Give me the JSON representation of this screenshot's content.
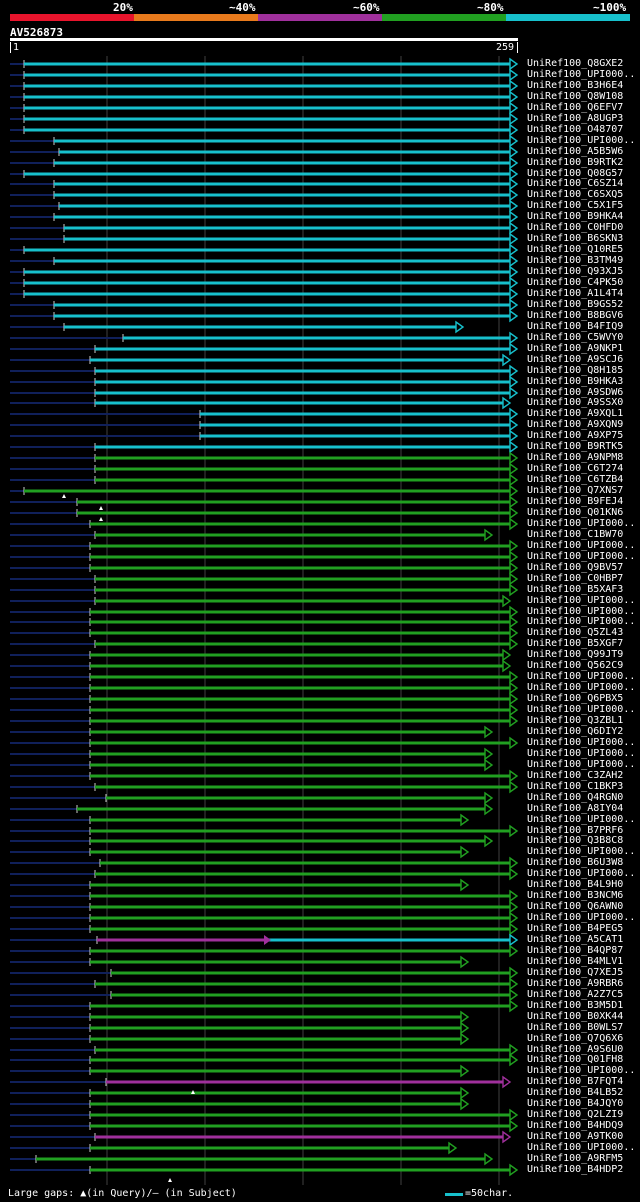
{
  "query": {
    "name": "AV526873",
    "start": "1",
    "end": "259"
  },
  "legend": [
    {
      "label": "20%",
      "color": "#e8142c"
    },
    {
      "label": "~40%",
      "color": "#e87a1c"
    },
    {
      "label": "~60%",
      "color": "#a0309c"
    },
    {
      "label": "~80%",
      "color": "#21a021"
    },
    {
      "label": "~100%",
      "color": "#17c0cc"
    }
  ],
  "hits": [
    {
      "id": "UniRef100_Q8GXE2",
      "color": "cyan"
    },
    {
      "id": "UniRef100_UPI000..",
      "color": "cyan"
    },
    {
      "id": "UniRef100_B3H6E4",
      "color": "cyan"
    },
    {
      "id": "UniRef100_Q8W108",
      "color": "cyan"
    },
    {
      "id": "UniRef100_Q6EFV7",
      "color": "cyan"
    },
    {
      "id": "UniRef100_A8UGP3",
      "color": "cyan"
    },
    {
      "id": "UniRef100_O48707",
      "color": "cyan"
    },
    {
      "id": "UniRef100_UPI000..",
      "color": "cyan"
    },
    {
      "id": "UniRef100_A5B5W6",
      "color": "cyan"
    },
    {
      "id": "UniRef100_B9RTK2",
      "color": "cyan"
    },
    {
      "id": "UniRef100_Q08G57",
      "color": "cyan"
    },
    {
      "id": "UniRef100_C6SZ14",
      "color": "cyan"
    },
    {
      "id": "UniRef100_C6SXQ5",
      "color": "cyan"
    },
    {
      "id": "UniRef100_C5X1F5",
      "color": "cyan"
    },
    {
      "id": "UniRef100_B9HKA4",
      "color": "cyan"
    },
    {
      "id": "UniRef100_C0HFD0",
      "color": "cyan"
    },
    {
      "id": "UniRef100_B6SKN3",
      "color": "cyan"
    },
    {
      "id": "UniRef100_Q10RE5",
      "color": "cyan"
    },
    {
      "id": "UniRef100_B3TM49",
      "color": "cyan"
    },
    {
      "id": "UniRef100_Q93XJ5",
      "color": "cyan"
    },
    {
      "id": "UniRef100_C4PK50",
      "color": "cyan"
    },
    {
      "id": "UniRef100_A1L4T4",
      "color": "cyan"
    },
    {
      "id": "UniRef100_B9GS52",
      "color": "cyan"
    },
    {
      "id": "UniRef100_B8BGV6",
      "color": "cyan"
    },
    {
      "id": "UniRef100_B4FIQ9",
      "color": "cyan"
    },
    {
      "id": "UniRef100_C5WVY0",
      "color": "cyan"
    },
    {
      "id": "UniRef100_A9NKP1",
      "color": "cyan"
    },
    {
      "id": "UniRef100_A9SCJ6",
      "color": "cyan"
    },
    {
      "id": "UniRef100_Q8H185",
      "color": "cyan"
    },
    {
      "id": "UniRef100_B9HKA3",
      "color": "cyan"
    },
    {
      "id": "UniRef100_A9SDW6",
      "color": "cyan"
    },
    {
      "id": "UniRef100_A9SSX0",
      "color": "cyan"
    },
    {
      "id": "UniRef100_A9XQL1",
      "color": "cyan"
    },
    {
      "id": "UniRef100_A9XQN9",
      "color": "cyan"
    },
    {
      "id": "UniRef100_A9XP75",
      "color": "cyan"
    },
    {
      "id": "UniRef100_B9RTK5",
      "color": "cyan"
    },
    {
      "id": "UniRef100_A9NPM8",
      "color": "green"
    },
    {
      "id": "UniRef100_C6T274",
      "color": "green"
    },
    {
      "id": "UniRef100_C6TZB4",
      "color": "green"
    },
    {
      "id": "UniRef100_Q7XNS7",
      "color": "green"
    },
    {
      "id": "UniRef100_B9FEJ4",
      "color": "green"
    },
    {
      "id": "UniRef100_Q01KN6",
      "color": "green"
    },
    {
      "id": "UniRef100_UPI000..",
      "color": "green"
    },
    {
      "id": "UniRef100_C1BW70",
      "color": "green"
    },
    {
      "id": "UniRef100_UPI000..",
      "color": "green"
    },
    {
      "id": "UniRef100_UPI000..",
      "color": "green"
    },
    {
      "id": "UniRef100_Q9BV57",
      "color": "green"
    },
    {
      "id": "UniRef100_C0HBP7",
      "color": "green"
    },
    {
      "id": "UniRef100_B5XAF3",
      "color": "green"
    },
    {
      "id": "UniRef100_UPI000..",
      "color": "green"
    },
    {
      "id": "UniRef100_UPI000..",
      "color": "green"
    },
    {
      "id": "UniRef100_UPI000..",
      "color": "green"
    },
    {
      "id": "UniRef100_Q5ZL43",
      "color": "green"
    },
    {
      "id": "UniRef100_B5XGF7",
      "color": "green"
    },
    {
      "id": "UniRef100_Q99JT9",
      "color": "green"
    },
    {
      "id": "UniRef100_Q562C9",
      "color": "green"
    },
    {
      "id": "UniRef100_UPI000..",
      "color": "green"
    },
    {
      "id": "UniRef100_UPI000..",
      "color": "green"
    },
    {
      "id": "UniRef100_Q6PBX5",
      "color": "green"
    },
    {
      "id": "UniRef100_UPI000..",
      "color": "green"
    },
    {
      "id": "UniRef100_Q3ZBL1",
      "color": "green"
    },
    {
      "id": "UniRef100_Q6DIY2",
      "color": "green"
    },
    {
      "id": "UniRef100_UPI000..",
      "color": "green"
    },
    {
      "id": "UniRef100_UPI000..",
      "color": "green"
    },
    {
      "id": "UniRef100_UPI000..",
      "color": "green"
    },
    {
      "id": "UniRef100_C3ZAH2",
      "color": "green"
    },
    {
      "id": "UniRef100_C1BKP3",
      "color": "green"
    },
    {
      "id": "UniRef100_Q4RGN0",
      "color": "green"
    },
    {
      "id": "UniRef100_A8IY04",
      "color": "green"
    },
    {
      "id": "UniRef100_UPI000..",
      "color": "green"
    },
    {
      "id": "UniRef100_B7PRF6",
      "color": "green"
    },
    {
      "id": "UniRef100_Q3B8C8",
      "color": "green"
    },
    {
      "id": "UniRef100_UPI000..",
      "color": "green"
    },
    {
      "id": "UniRef100_B6U3W8",
      "color": "green"
    },
    {
      "id": "UniRef100_UPI000..",
      "color": "green"
    },
    {
      "id": "UniRef100_B4L9H0",
      "color": "green"
    },
    {
      "id": "UniRef100_B3NCM6",
      "color": "green"
    },
    {
      "id": "UniRef100_Q6AWN0",
      "color": "green"
    },
    {
      "id": "UniRef100_UPI000..",
      "color": "green"
    },
    {
      "id": "UniRef100_B4PEG5",
      "color": "green"
    },
    {
      "id": "UniRef100_A5CAT1",
      "color": "magenta-cyan"
    },
    {
      "id": "UniRef100_B4QP87",
      "color": "green"
    },
    {
      "id": "UniRef100_B4MLV1",
      "color": "green"
    },
    {
      "id": "UniRef100_Q7XEJ5",
      "color": "green"
    },
    {
      "id": "UniRef100_A9RBR6",
      "color": "green"
    },
    {
      "id": "UniRef100_A2Z7C5",
      "color": "green"
    },
    {
      "id": "UniRef100_B3M5D1",
      "color": "green"
    },
    {
      "id": "UniRef100_B0XK44",
      "color": "green"
    },
    {
      "id": "UniRef100_B0WLS7",
      "color": "green"
    },
    {
      "id": "UniRef100_Q7Q6X6",
      "color": "green"
    },
    {
      "id": "UniRef100_A9S6U0",
      "color": "green"
    },
    {
      "id": "UniRef100_Q01FH8",
      "color": "green"
    },
    {
      "id": "UniRef100_UPI000..",
      "color": "green"
    },
    {
      "id": "UniRef100_B7FQT4",
      "color": "magenta"
    },
    {
      "id": "UniRef100_B4LB52",
      "color": "green"
    },
    {
      "id": "UniRef100_B4JQY0",
      "color": "green"
    },
    {
      "id": "UniRef100_Q2LZI9",
      "color": "green"
    },
    {
      "id": "UniRef100_B4HDQ9",
      "color": "green"
    },
    {
      "id": "UniRef100_A9TK00",
      "color": "magenta"
    },
    {
      "id": "UniRef100_UPI000..",
      "color": "green"
    },
    {
      "id": "UniRef100_A9RFM5",
      "color": "green"
    },
    {
      "id": "UniRef100_B4HDP2",
      "color": "green"
    }
  ],
  "footer": {
    "gaps_label": "Large gaps: ▲(in Query)/— (in Subject)",
    "scale_label": "=50char."
  },
  "palette": {
    "cyan": "#17c0cc",
    "green": "#21a021",
    "magenta": "#a0309c",
    "navy": "#10205a",
    "grid": "#404040"
  }
}
